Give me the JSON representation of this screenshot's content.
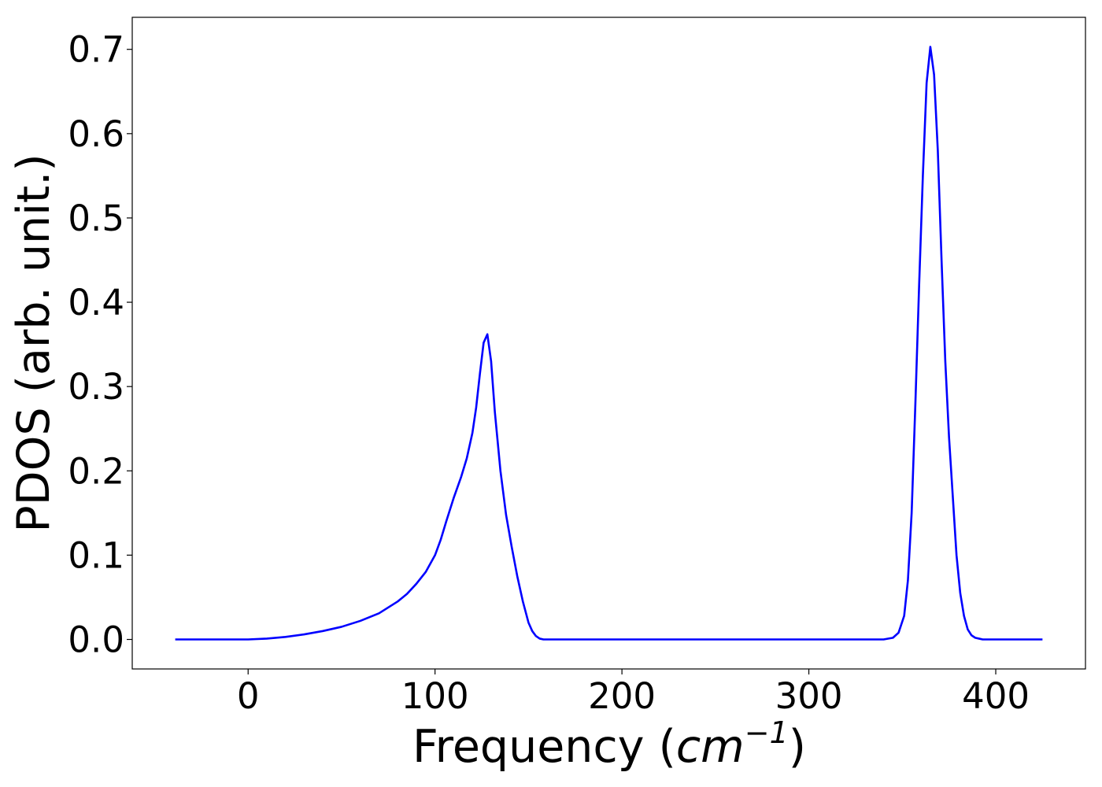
{
  "chart_data": {
    "type": "line",
    "title": "",
    "xlabel": "Frequency (cm⁻¹)",
    "xlabel_parts": {
      "prefix": "Frequency (",
      "unit": "cm",
      "superscript": "−1",
      "suffix": ")"
    },
    "ylabel": "PDOS (arb. unit.)",
    "xlim": [
      -62,
      448
    ],
    "ylim": [
      -0.035,
      0.738
    ],
    "xticks": [
      0,
      100,
      200,
      300,
      400
    ],
    "xtick_labels": [
      "0",
      "100",
      "200",
      "300",
      "400"
    ],
    "yticks": [
      0.0,
      0.1,
      0.2,
      0.3,
      0.4,
      0.5,
      0.6,
      0.7
    ],
    "ytick_labels": [
      "0.0",
      "0.1",
      "0.2",
      "0.3",
      "0.4",
      "0.5",
      "0.6",
      "0.7"
    ],
    "grid": false,
    "legend": "none",
    "series": [
      {
        "color": "#0000ff",
        "x": [
          -39,
          0,
          10,
          20,
          30,
          40,
          50,
          60,
          70,
          80,
          85,
          90,
          95,
          100,
          103,
          106,
          110,
          114,
          117,
          120,
          122,
          124,
          126,
          128,
          130,
          132,
          135,
          138,
          141,
          144,
          147,
          150,
          152,
          154,
          156,
          158,
          160,
          200,
          250,
          300,
          340,
          345,
          348,
          351,
          353,
          355,
          357,
          359,
          361,
          363,
          365,
          367,
          369,
          371,
          373,
          375,
          377,
          379,
          381,
          383,
          385,
          387,
          389,
          391,
          393,
          395,
          397,
          400,
          425
        ],
        "y": [
          0.0,
          0.0,
          0.001,
          0.003,
          0.006,
          0.01,
          0.015,
          0.022,
          0.031,
          0.045,
          0.054,
          0.066,
          0.08,
          0.1,
          0.118,
          0.14,
          0.168,
          0.193,
          0.215,
          0.245,
          0.275,
          0.315,
          0.352,
          0.362,
          0.33,
          0.27,
          0.2,
          0.148,
          0.11,
          0.075,
          0.045,
          0.02,
          0.01,
          0.004,
          0.001,
          0.0,
          0.0,
          0.0,
          0.0,
          0.0,
          0.0,
          0.002,
          0.008,
          0.028,
          0.07,
          0.15,
          0.28,
          0.42,
          0.55,
          0.66,
          0.703,
          0.67,
          0.58,
          0.45,
          0.33,
          0.24,
          0.17,
          0.1,
          0.055,
          0.028,
          0.012,
          0.005,
          0.002,
          0.001,
          0.0,
          0.0,
          0.0,
          0.0,
          0.0
        ]
      }
    ]
  }
}
